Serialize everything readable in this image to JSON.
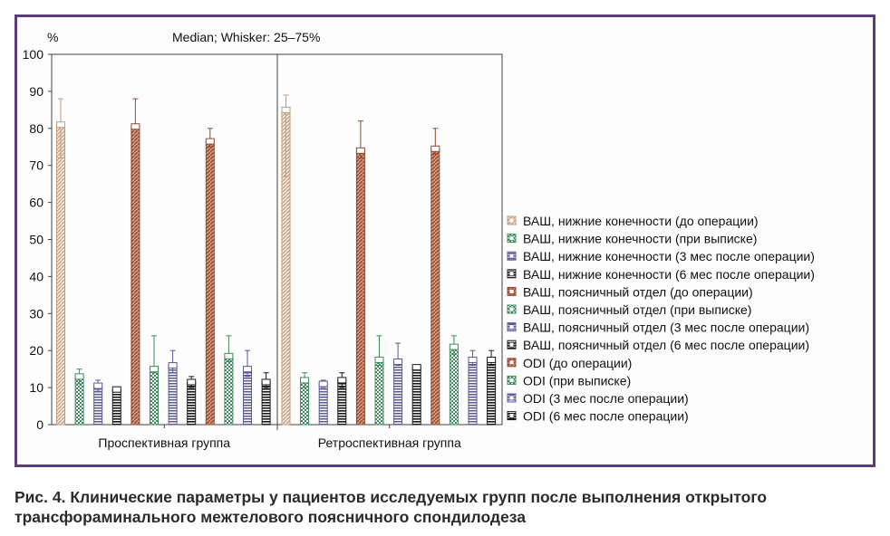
{
  "caption": "Рис. 4. Клинические параметры у пациентов исследуемых групп после выполнения открытого трансфораминального межтелового поясничного спондилодеза",
  "colors": {
    "frame": "#5b3d7a",
    "light_brown": "#c49a7a",
    "dark_brown": "#8e4a34",
    "green": "#3f8a5a",
    "blue": "#5a5a96",
    "black": "#1a1a1a"
  },
  "chart_data": {
    "type": "bar",
    "title": "Median; Whisker: 25–75%",
    "ylabel": "%",
    "xlabel": "",
    "ylim": [
      0,
      100
    ],
    "yticks": [
      0,
      10,
      20,
      30,
      40,
      50,
      60,
      70,
      80,
      90,
      100
    ],
    "grid": false,
    "legend_position": "right",
    "categories": [
      "Проспективная группа",
      "Ретроспективная группа"
    ],
    "series": [
      {
        "name": "ВАШ, нижние конечности (до операции)",
        "color": "#c49a7a",
        "pattern": "light-brown",
        "values": [
          81,
          85
        ],
        "q1": [
          72,
          67
        ],
        "q3": [
          88,
          89
        ]
      },
      {
        "name": "ВАШ, нижние конечности (при выписке)",
        "color": "#3f8a5a",
        "pattern": "green-checker",
        "values": [
          13,
          12
        ],
        "q1": [
          11,
          10
        ],
        "q3": [
          15,
          14
        ]
      },
      {
        "name": "ВАШ, нижние конечности (3 мес после операции)",
        "color": "#5a5a96",
        "pattern": "blue-stripes",
        "values": [
          10.5,
          11
        ],
        "q1": [
          9,
          10
        ],
        "q3": [
          12,
          12
        ]
      },
      {
        "name": "ВАШ, нижние конечности (6 мес после операции)",
        "color": "#1a1a1a",
        "pattern": "black-stripes",
        "values": [
          9.5,
          12
        ],
        "q1": [
          9,
          10
        ],
        "q3": [
          10,
          14
        ]
      },
      {
        "name": "ВАШ, поясничный отдел (до операции)",
        "color": "#8e4a34",
        "pattern": "dark-brown",
        "values": [
          80.5,
          74
        ],
        "q1": [
          80,
          72
        ],
        "q3": [
          88,
          82
        ]
      },
      {
        "name": "ВАШ, поясничный отдел (при выписке)",
        "color": "#3f8a5a",
        "pattern": "green-checker",
        "values": [
          15,
          17.5
        ],
        "q1": [
          14,
          16
        ],
        "q3": [
          24,
          24
        ]
      },
      {
        "name": "ВАШ, поясничный отдел (3 мес после операции)",
        "color": "#5a5a96",
        "pattern": "blue-stripes",
        "values": [
          16,
          17
        ],
        "q1": [
          14,
          16
        ],
        "q3": [
          20,
          22
        ]
      },
      {
        "name": "ВАШ, поясничный отдел (6 мес после операции)",
        "color": "#1a1a1a",
        "pattern": "black-stripes",
        "values": [
          11.5,
          15.5
        ],
        "q1": [
          10,
          15
        ],
        "q3": [
          13,
          16
        ]
      },
      {
        "name": "ODI (до операции)",
        "color": "#8e4a34",
        "pattern": "dark-brown",
        "values": [
          76.5,
          74.5
        ],
        "q1": [
          75,
          73
        ],
        "q3": [
          80,
          80
        ]
      },
      {
        "name": "ODI (при выписке)",
        "color": "#3f8a5a",
        "pattern": "green-checker",
        "values": [
          18.5,
          21
        ],
        "q1": [
          17,
          19
        ],
        "q3": [
          24,
          24
        ]
      },
      {
        "name": "ODI (3 мес после операции)",
        "color": "#5a5a96",
        "pattern": "blue-stripes",
        "values": [
          15,
          17.5
        ],
        "q1": [
          13,
          16
        ],
        "q3": [
          20,
          20
        ]
      },
      {
        "name": "ODI (6 мес после операции)",
        "color": "#1a1a1a",
        "pattern": "black-stripes",
        "values": [
          11.5,
          17.5
        ],
        "q1": [
          10,
          16
        ],
        "q3": [
          14,
          20
        ]
      }
    ]
  }
}
